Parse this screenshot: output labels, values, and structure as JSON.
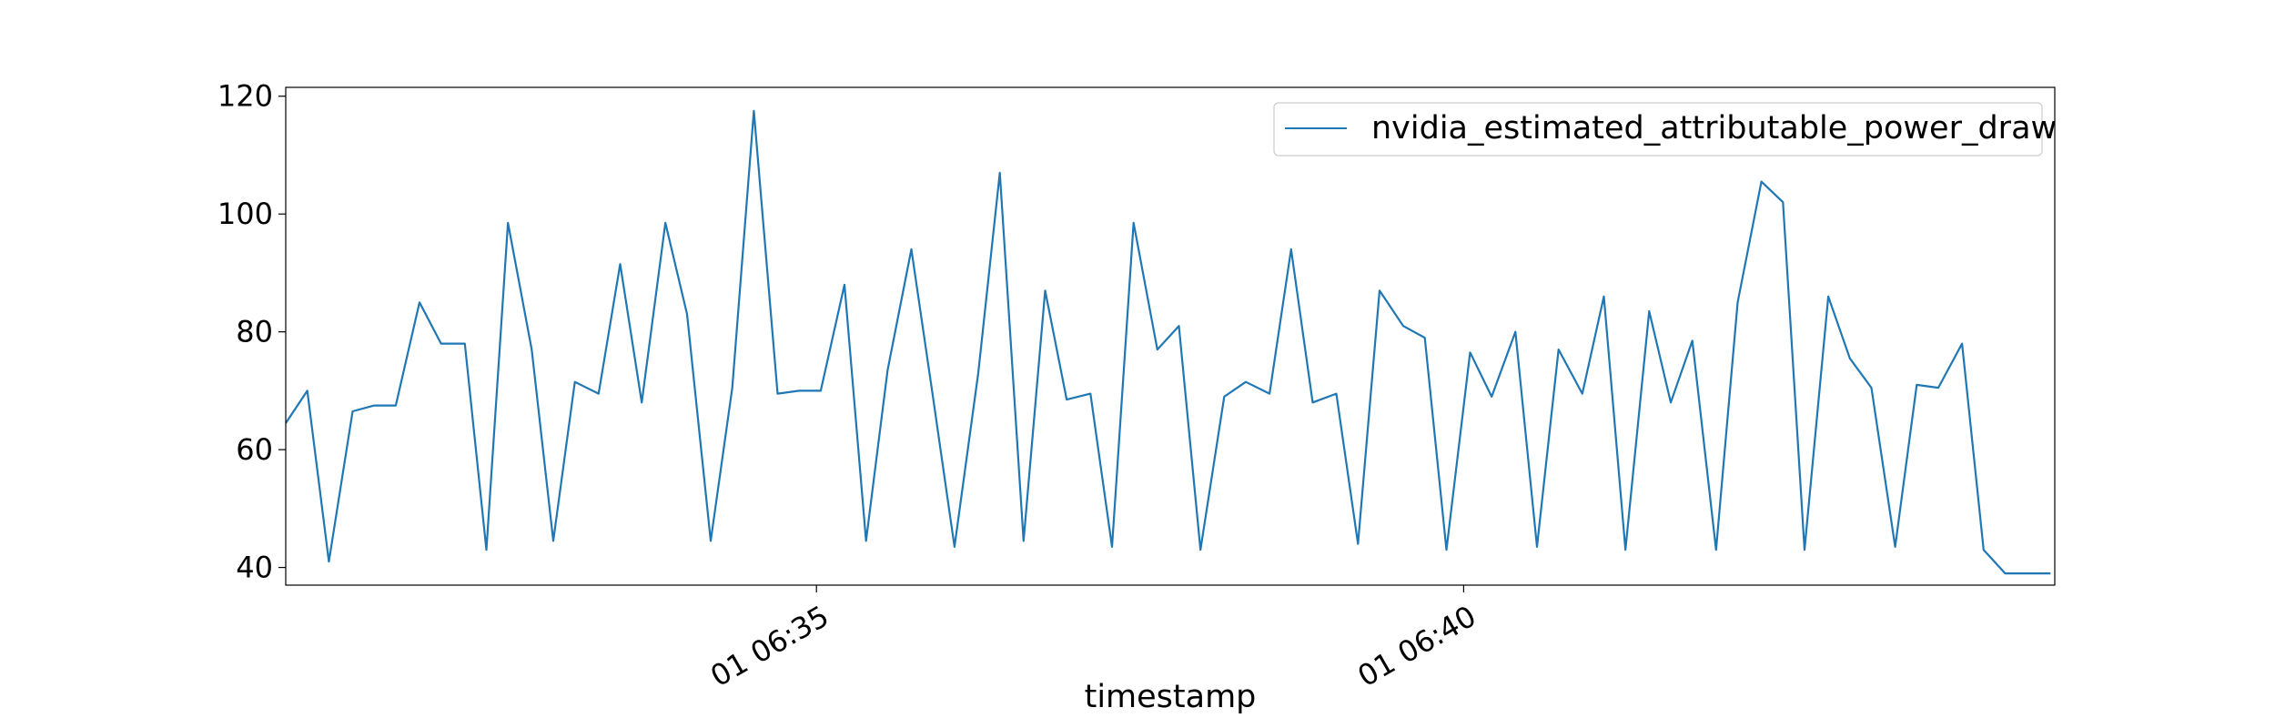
{
  "chart_data": {
    "type": "line",
    "xlabel": "timestamp",
    "ylabel": "",
    "xlim": [
      "01 06:30:54",
      "01 06:44:34"
    ],
    "ylim": [
      37,
      121.5
    ],
    "x_ticks": [
      {
        "value": "01 06:35:00",
        "label": "01 06:35"
      },
      {
        "value": "01 06:40:00",
        "label": "01 06:40"
      }
    ],
    "y_ticks": [
      40,
      60,
      80,
      100,
      120
    ],
    "grid": false,
    "legend": {
      "position": "top-right"
    },
    "colors": {
      "series": "#1f77b4"
    },
    "series": [
      {
        "name": "nvidia_estimated_attributable_power_draw",
        "x": [
          "01 06:30:54",
          "01 06:31:04",
          "01 06:31:14",
          "01 06:31:25",
          "01 06:31:35",
          "01 06:31:45",
          "01 06:31:56",
          "01 06:32:06",
          "01 06:32:17",
          "01 06:32:27",
          "01 06:32:37",
          "01 06:32:48",
          "01 06:32:58",
          "01 06:33:08",
          "01 06:33:19",
          "01 06:33:29",
          "01 06:33:39",
          "01 06:33:50",
          "01 06:34:00",
          "01 06:34:11",
          "01 06:34:21",
          "01 06:34:31",
          "01 06:34:42",
          "01 06:34:52",
          "01 06:35:02",
          "01 06:35:13",
          "01 06:35:23",
          "01 06:35:33",
          "01 06:35:44",
          "01 06:35:54",
          "01 06:36:04",
          "01 06:36:15",
          "01 06:36:25",
          "01 06:36:36",
          "01 06:36:46",
          "01 06:36:56",
          "01 06:37:07",
          "01 06:37:17",
          "01 06:37:27",
          "01 06:37:38",
          "01 06:37:48",
          "01 06:37:58",
          "01 06:38:09",
          "01 06:38:19",
          "01 06:38:30",
          "01 06:38:40",
          "01 06:38:50",
          "01 06:39:01",
          "01 06:39:11",
          "01 06:39:21",
          "01 06:39:32",
          "01 06:39:42",
          "01 06:39:52",
          "01 06:40:03",
          "01 06:40:13",
          "01 06:40:24",
          "01 06:40:34",
          "01 06:40:44",
          "01 06:40:55",
          "01 06:41:05",
          "01 06:41:15",
          "01 06:41:26",
          "01 06:41:36",
          "01 06:41:46",
          "01 06:41:57",
          "01 06:42:07",
          "01 06:42:18",
          "01 06:42:28",
          "01 06:42:38",
          "01 06:42:49",
          "01 06:42:59",
          "01 06:43:09",
          "01 06:43:20",
          "01 06:43:30",
          "01 06:43:40",
          "01 06:43:51",
          "01 06:44:01",
          "01 06:44:11",
          "01 06:44:22",
          "01 06:44:32"
        ],
        "y": [
          64.5,
          70,
          41,
          66.5,
          67.5,
          67.5,
          85,
          78,
          78,
          43,
          98.5,
          77,
          44.5,
          71.5,
          69.5,
          91.5,
          68,
          98.5,
          83,
          44.5,
          70.5,
          117.5,
          69.5,
          70,
          70,
          88,
          44.5,
          73.5,
          94,
          69,
          43.5,
          73,
          107,
          44.5,
          87,
          68.5,
          69.5,
          43.5,
          98.5,
          77,
          81,
          43,
          69,
          71.5,
          69.5,
          94,
          68,
          69.5,
          44,
          87,
          81,
          79,
          43,
          76.5,
          69,
          80,
          43.5,
          77,
          69.5,
          86,
          43,
          83.5,
          68,
          78.5,
          43,
          85,
          105.5,
          102,
          43,
          86,
          75.5,
          70.5,
          43.5,
          71,
          70.5,
          78,
          43,
          39,
          39,
          39
        ]
      }
    ]
  }
}
